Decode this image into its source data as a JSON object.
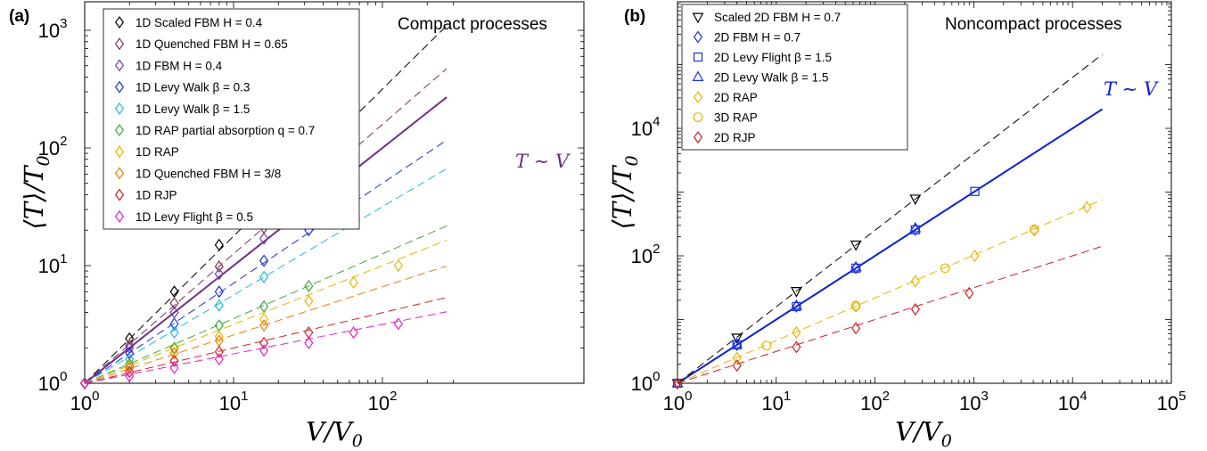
{
  "chart_data": [
    {
      "panel_label": "(a)",
      "type": "scatter",
      "title": "Compact processes",
      "xlabel": "V/V0",
      "ylabel": "⟨T⟩/T0",
      "xscale": "log",
      "yscale": "log",
      "xlim": [
        1,
        300
      ],
      "ylim": [
        1,
        10000
      ],
      "x_ticks": [
        {
          "base": "10",
          "exp": "0",
          "value": 1
        },
        {
          "base": "10",
          "exp": "1",
          "value": 10
        },
        {
          "base": "10",
          "exp": "2",
          "value": 100
        }
      ],
      "y_ticks": [
        {
          "base": "10",
          "exp": "0",
          "value": 1
        },
        {
          "base": "10",
          "exp": "1",
          "value": 10
        },
        {
          "base": "10",
          "exp": "2",
          "value": 100
        },
        {
          "base": "10",
          "exp": "3",
          "value": 1000
        }
      ],
      "grid": false,
      "legend_position": "top-left",
      "reference_line": {
        "label": "T ∼ V",
        "slope": 1,
        "color": "#6a2c82"
      },
      "series": [
        {
          "name": "1D Scaled FBM  H = 0.4",
          "marker": "diamond",
          "color": "#000000",
          "fit_slope": 1.25,
          "fit_xmax": 270,
          "points": [
            [
              1,
              1
            ],
            [
              2,
              2.4
            ],
            [
              4,
              6
            ],
            [
              8,
              15
            ],
            [
              16,
              34
            ]
          ]
        },
        {
          "name": "1D Quenched FBM  H = 0.65",
          "marker": "diamond",
          "color": "#7e2f5a",
          "fit_slope": 1.1,
          "fit_xmax": 270,
          "points": [
            [
              1,
              1
            ],
            [
              2,
              2.1
            ],
            [
              4,
              4.8
            ],
            [
              8,
              9.8
            ],
            [
              16,
              21
            ]
          ]
        },
        {
          "name": "1D FBM H = 0.4",
          "marker": "diamond",
          "color": "#7a3aa0",
          "fit_slope": 1,
          "fit_xmax": 270,
          "points": [
            [
              1,
              1
            ],
            [
              2,
              2
            ],
            [
              4,
              4
            ],
            [
              8,
              8.5
            ],
            [
              16,
              17
            ]
          ]
        },
        {
          "name": "1D Levy Walk  β = 0.3",
          "marker": "diamond",
          "color": "#1a33e0",
          "fit_slope": 0.85,
          "fit_xmax": 270,
          "points": [
            [
              1,
              1
            ],
            [
              2,
              1.8
            ],
            [
              4,
              3.2
            ],
            [
              8,
              6
            ],
            [
              16,
              11
            ],
            [
              32,
              20
            ],
            [
              64,
              35
            ]
          ]
        },
        {
          "name": "1D Levy Walk  β = 1.5",
          "marker": "diamond",
          "color": "#1db8e6",
          "fit_slope": 0.75,
          "fit_xmax": 270,
          "points": [
            [
              1,
              1
            ],
            [
              2,
              1.6
            ],
            [
              4,
              2.7
            ],
            [
              8,
              4.6
            ],
            [
              16,
              8
            ]
          ]
        },
        {
          "name": "1D RAP partial absorption  q = 0.7",
          "marker": "diamond",
          "color": "#3aaa3a",
          "fit_slope": 0.55,
          "fit_xmax": 270,
          "points": [
            [
              1,
              1
            ],
            [
              2,
              1.45
            ],
            [
              4,
              2
            ],
            [
              8,
              3.1
            ],
            [
              16,
              4.5
            ],
            [
              32,
              6.7
            ]
          ]
        },
        {
          "name": "1D RAP",
          "marker": "diamond",
          "color": "#e8b400",
          "fit_slope": 0.5,
          "fit_xmax": 270,
          "points": [
            [
              1,
              1
            ],
            [
              2,
              1.4
            ],
            [
              4,
              1.95
            ],
            [
              8,
              2.5
            ],
            [
              16,
              3.5
            ],
            [
              32,
              5
            ],
            [
              64,
              7.2
            ],
            [
              128,
              10
            ]
          ]
        },
        {
          "name": "1D Quenched FBM  H = 3/8",
          "marker": "diamond",
          "color": "#f07a0a",
          "fit_slope": 0.41,
          "fit_xmax": 270,
          "points": [
            [
              1,
              1
            ],
            [
              2,
              1.35
            ],
            [
              4,
              1.8
            ],
            [
              8,
              2.3
            ],
            [
              16,
              3.1
            ]
          ]
        },
        {
          "name": "1D RJP",
          "marker": "diamond",
          "color": "#d42020",
          "fit_slope": 0.3,
          "fit_xmax": 270,
          "points": [
            [
              1,
              1
            ],
            [
              2,
              1.25
            ],
            [
              4,
              1.55
            ],
            [
              8,
              1.85
            ],
            [
              16,
              2.2
            ],
            [
              32,
              2.7
            ]
          ]
        },
        {
          "name": "1D Levy Flight  β = 0.5",
          "marker": "diamond",
          "color": "#e020c8",
          "fit_slope": 0.25,
          "fit_xmax": 270,
          "points": [
            [
              1,
              1
            ],
            [
              2,
              1.15
            ],
            [
              4,
              1.35
            ],
            [
              8,
              1.6
            ],
            [
              16,
              1.9
            ],
            [
              32,
              2.2
            ],
            [
              64,
              2.7
            ],
            [
              128,
              3.2
            ]
          ]
        }
      ]
    },
    {
      "panel_label": "(b)",
      "type": "scatter",
      "title": "Noncompact processes",
      "xlabel": "V/V0",
      "ylabel": "⟨T⟩/T0",
      "xscale": "log",
      "yscale": "log",
      "xlim": [
        1,
        100000
      ],
      "ylim": [
        1,
        1000000
      ],
      "x_ticks": [
        {
          "base": "10",
          "exp": "0",
          "value": 1
        },
        {
          "base": "10",
          "exp": "1",
          "value": 10
        },
        {
          "base": "10",
          "exp": "2",
          "value": 100
        },
        {
          "base": "10",
          "exp": "3",
          "value": 1000
        },
        {
          "base": "10",
          "exp": "4",
          "value": 10000
        },
        {
          "base": "10",
          "exp": "5",
          "value": 100000
        }
      ],
      "y_ticks": [
        {
          "base": "10",
          "exp": "0",
          "value": 1
        },
        {
          "base": "10",
          "exp": "2",
          "value": 100
        },
        {
          "base": "10",
          "exp": "4",
          "value": 10000
        }
      ],
      "grid": false,
      "legend_position": "top-left",
      "reference_line": {
        "label": "T ∼ V",
        "slope": 1,
        "color": "#0a1fd8"
      },
      "series": [
        {
          "name": "Scaled 2D FBM   H = 0.7",
          "marker": "triangle-down",
          "color": "#000000",
          "fit_slope": 1.2,
          "fit_xmax": 20000,
          "points": [
            [
              1,
              1
            ],
            [
              4,
              5.2
            ],
            [
              16,
              28
            ],
            [
              64,
              150
            ],
            [
              256,
              790
            ]
          ]
        },
        {
          "name": "2D FBM    H = 0.7",
          "marker": "diamond",
          "color": "#1a33e0",
          "fit_slope": null,
          "fit_xmax": null,
          "points": [
            [
              1,
              1
            ],
            [
              4,
              4
            ],
            [
              16,
              16
            ],
            [
              64,
              64
            ],
            [
              256,
              256
            ]
          ]
        },
        {
          "name": "2D Levy Flight  β = 1.5",
          "marker": "square",
          "color": "#1a33e0",
          "fit_slope": null,
          "fit_xmax": null,
          "points": [
            [
              1,
              1
            ],
            [
              4,
              4
            ],
            [
              16,
              16
            ],
            [
              64,
              64
            ],
            [
              256,
              256
            ],
            [
              1024,
              1024
            ]
          ]
        },
        {
          "name": "2D Levy Walk  β = 1.5",
          "marker": "triangle-up",
          "color": "#1a33e0",
          "fit_slope": null,
          "fit_xmax": null,
          "points": [
            [
              1,
              1
            ],
            [
              4,
              4.1
            ],
            [
              16,
              16.5
            ],
            [
              64,
              66
            ],
            [
              256,
              270
            ]
          ]
        },
        {
          "name": "2D RAP",
          "marker": "diamond",
          "color": "#e8b400",
          "fit_slope": 0.67,
          "fit_xmax": 20000,
          "points": [
            [
              1,
              1
            ],
            [
              4,
              2.5
            ],
            [
              16,
              6.3
            ],
            [
              64,
              16
            ],
            [
              256,
              40
            ],
            [
              1024,
              100
            ],
            [
              4096,
              250
            ],
            [
              14000,
              580
            ]
          ]
        },
        {
          "name": "3D RAP",
          "marker": "circle",
          "color": "#e8b400",
          "fit_slope": null,
          "fit_xmax": null,
          "points": [
            [
              8,
              3.9
            ],
            [
              64,
              16.5
            ],
            [
              512,
              64
            ],
            [
              4096,
              260
            ]
          ]
        },
        {
          "name": "2D RJP",
          "marker": "diamond",
          "color": "#d42020",
          "fit_slope": 0.5,
          "fit_xmax": 20000,
          "points": [
            [
              1,
              1
            ],
            [
              4,
              1.9
            ],
            [
              16,
              3.7
            ],
            [
              64,
              7.3
            ],
            [
              256,
              14.5
            ],
            [
              900,
              26
            ]
          ]
        }
      ]
    }
  ]
}
